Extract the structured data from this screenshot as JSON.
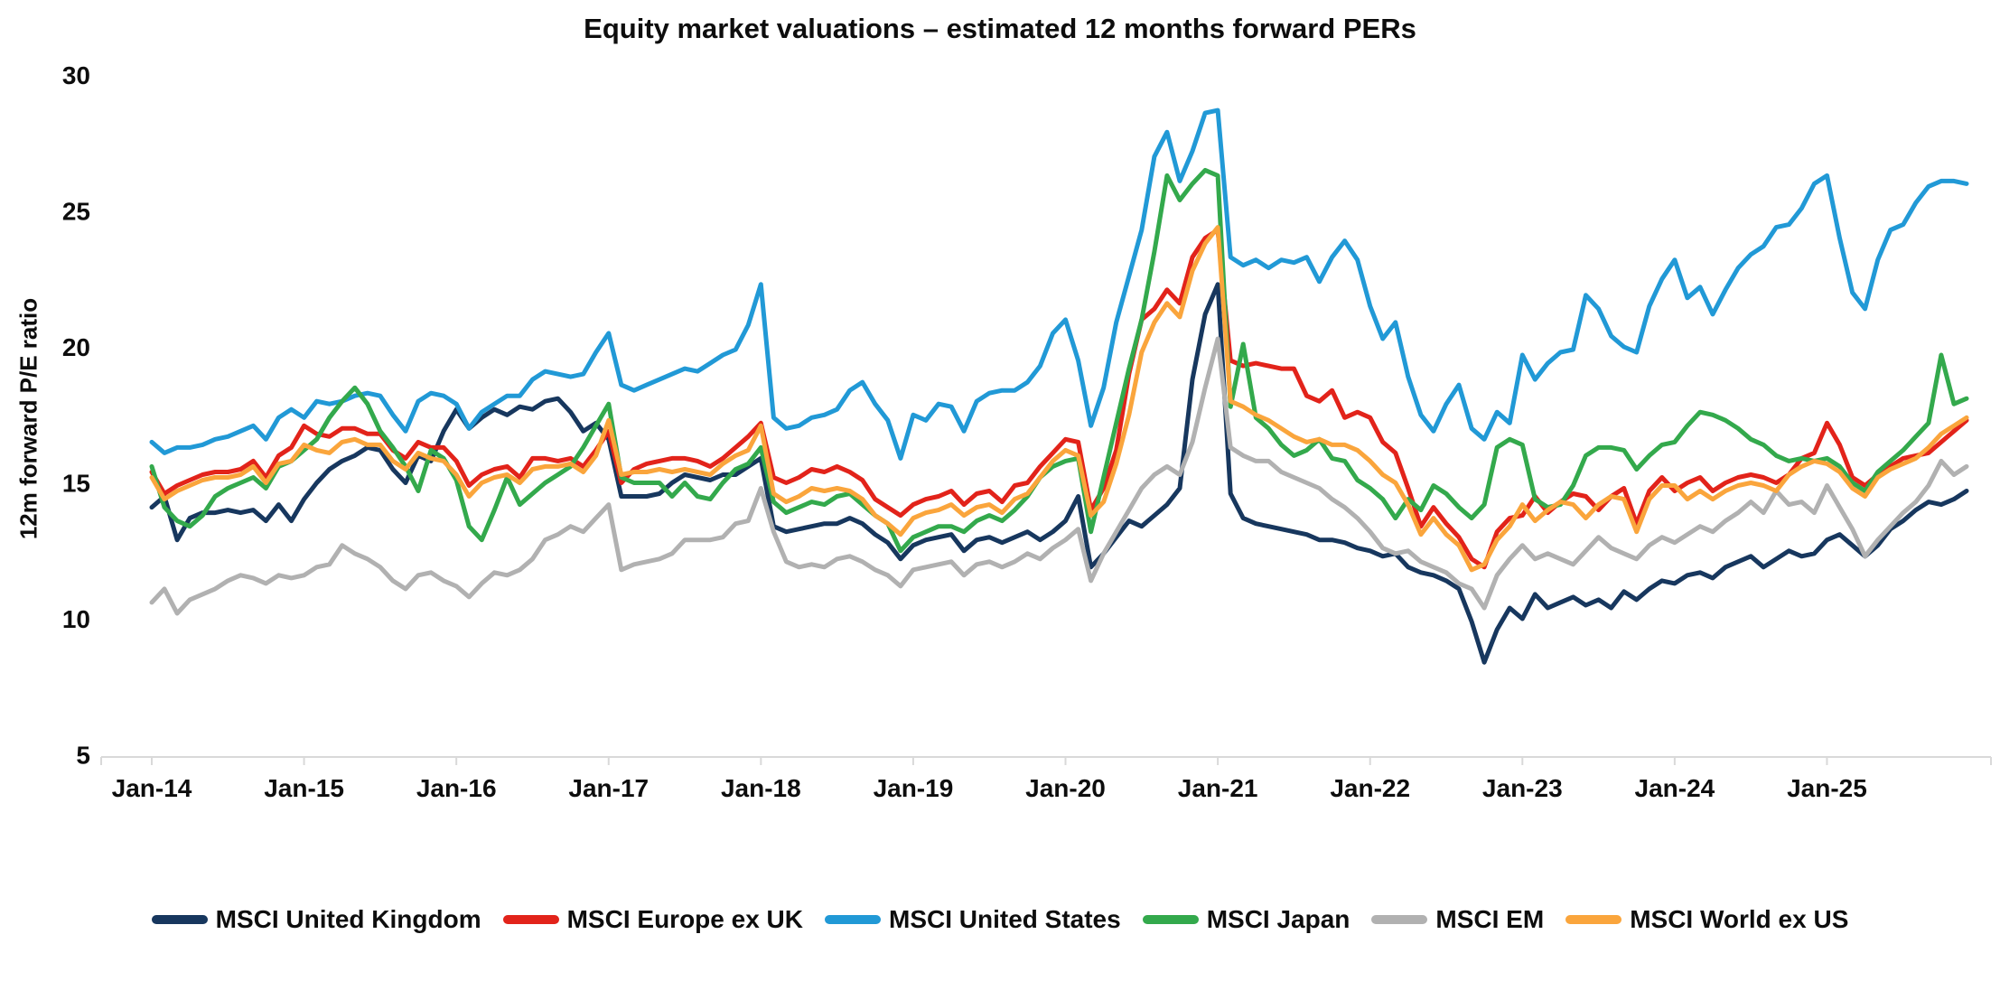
{
  "chart_data": {
    "type": "line",
    "title": "Equity market valuations – estimated 12 months forward PERs",
    "ylabel": "12m forward P/E ratio",
    "x_start": "Jan-2014",
    "x_end": "Dec-2025",
    "x_frequency": "monthly",
    "x_tick_labels": [
      "Jan-14",
      "Jan-15",
      "Jan-16",
      "Jan-17",
      "Jan-18",
      "Jan-19",
      "Jan-20",
      "Jan-21",
      "Jan-22",
      "Jan-23",
      "Jan-24",
      "Jan-25"
    ],
    "yticks": [
      5,
      10,
      15,
      20,
      25,
      30
    ],
    "ylim": [
      5,
      30
    ],
    "grid": false,
    "legend_position": "bottom",
    "background_color": "#FFFFFF",
    "axis_color": "#D9D9D9",
    "text_color": "#0D0D0D",
    "series": [
      {
        "name": "MSCI United Kingdom",
        "color": "#17375E",
        "values": [
          14.1,
          14.5,
          12.9,
          13.7,
          13.9,
          13.9,
          14.0,
          13.9,
          14.0,
          13.6,
          14.2,
          13.6,
          14.4,
          15.0,
          15.5,
          15.8,
          16.0,
          16.3,
          16.2,
          15.5,
          15.0,
          16.0,
          15.8,
          16.9,
          17.7,
          17.0,
          17.4,
          17.7,
          17.5,
          17.8,
          17.7,
          18.0,
          18.1,
          17.6,
          16.9,
          17.2,
          16.6,
          14.5,
          14.5,
          14.5,
          14.6,
          15.0,
          15.3,
          15.2,
          15.1,
          15.3,
          15.3,
          15.6,
          15.9,
          13.4,
          13.2,
          13.3,
          13.4,
          13.5,
          13.5,
          13.7,
          13.5,
          13.1,
          12.8,
          12.2,
          12.7,
          12.9,
          13.0,
          13.1,
          12.5,
          12.9,
          13.0,
          12.8,
          13.0,
          13.2,
          12.9,
          13.2,
          13.6,
          14.5,
          11.9,
          12.4,
          13.0,
          13.6,
          13.4,
          13.8,
          14.2,
          14.8,
          18.8,
          21.2,
          22.3,
          14.6,
          13.7,
          13.5,
          13.4,
          13.3,
          13.2,
          13.1,
          12.9,
          12.9,
          12.8,
          12.6,
          12.5,
          12.3,
          12.4,
          11.9,
          11.7,
          11.6,
          11.4,
          11.1,
          9.9,
          8.4,
          9.6,
          10.4,
          10.0,
          10.9,
          10.4,
          10.6,
          10.8,
          10.5,
          10.7,
          10.4,
          11.0,
          10.7,
          11.1,
          11.4,
          11.3,
          11.6,
          11.7,
          11.5,
          11.9,
          12.1,
          12.3,
          11.9,
          12.2,
          12.5,
          12.3,
          12.4,
          12.9,
          13.1,
          12.7,
          12.3,
          12.7,
          13.3,
          13.6,
          14.0,
          14.3,
          14.2,
          14.4,
          14.7
        ]
      },
      {
        "name": "MSCI Europe ex UK",
        "color": "#E2231A",
        "values": [
          15.4,
          14.6,
          14.9,
          15.1,
          15.3,
          15.4,
          15.4,
          15.5,
          15.8,
          15.2,
          16.0,
          16.3,
          17.1,
          16.8,
          16.7,
          17.0,
          17.0,
          16.8,
          16.8,
          16.2,
          15.9,
          16.5,
          16.3,
          16.3,
          15.8,
          14.9,
          15.3,
          15.5,
          15.6,
          15.2,
          15.9,
          15.9,
          15.8,
          15.9,
          15.6,
          16.2,
          16.9,
          15.0,
          15.5,
          15.7,
          15.8,
          15.9,
          15.9,
          15.8,
          15.6,
          15.9,
          16.3,
          16.7,
          17.2,
          15.2,
          15.0,
          15.2,
          15.5,
          15.4,
          15.6,
          15.4,
          15.1,
          14.4,
          14.1,
          13.8,
          14.2,
          14.4,
          14.5,
          14.7,
          14.2,
          14.6,
          14.7,
          14.3,
          14.9,
          15.0,
          15.6,
          16.1,
          16.6,
          16.5,
          14.0,
          14.8,
          16.2,
          19.0,
          21.0,
          21.4,
          22.1,
          21.6,
          23.3,
          24.0,
          24.3,
          19.5,
          19.3,
          19.4,
          19.3,
          19.2,
          19.2,
          18.2,
          18.0,
          18.4,
          17.4,
          17.6,
          17.4,
          16.5,
          16.1,
          14.8,
          13.4,
          14.1,
          13.5,
          13.0,
          12.2,
          11.9,
          13.2,
          13.7,
          13.8,
          14.5,
          13.9,
          14.3,
          14.6,
          14.5,
          14.0,
          14.5,
          14.8,
          13.5,
          14.7,
          15.2,
          14.7,
          15.0,
          15.2,
          14.7,
          15.0,
          15.2,
          15.3,
          15.2,
          15.0,
          15.3,
          15.9,
          16.1,
          17.2,
          16.4,
          15.2,
          14.9,
          15.3,
          15.6,
          15.9,
          16.0,
          16.1,
          16.5,
          16.9,
          17.3
        ]
      },
      {
        "name": "MSCI United States",
        "color": "#2199D6",
        "values": [
          16.5,
          16.1,
          16.3,
          16.3,
          16.4,
          16.6,
          16.7,
          16.9,
          17.1,
          16.6,
          17.4,
          17.7,
          17.4,
          18.0,
          17.9,
          18.0,
          18.2,
          18.3,
          18.2,
          17.5,
          16.9,
          18.0,
          18.3,
          18.2,
          17.9,
          17.0,
          17.6,
          17.9,
          18.2,
          18.2,
          18.8,
          19.1,
          19.0,
          18.9,
          19.0,
          19.8,
          20.5,
          18.6,
          18.4,
          18.6,
          18.8,
          19.0,
          19.2,
          19.1,
          19.4,
          19.7,
          19.9,
          20.8,
          22.3,
          17.4,
          17.0,
          17.1,
          17.4,
          17.5,
          17.7,
          18.4,
          18.7,
          17.9,
          17.3,
          15.9,
          17.5,
          17.3,
          17.9,
          17.8,
          16.9,
          18.0,
          18.3,
          18.4,
          18.4,
          18.7,
          19.3,
          20.5,
          21.0,
          19.5,
          17.1,
          18.5,
          20.9,
          22.6,
          24.3,
          27.0,
          27.9,
          26.1,
          27.2,
          28.6,
          28.7,
          23.3,
          23.0,
          23.2,
          22.9,
          23.2,
          23.1,
          23.3,
          22.4,
          23.3,
          23.9,
          23.2,
          21.5,
          20.3,
          20.9,
          18.9,
          17.5,
          16.9,
          17.9,
          18.6,
          17.0,
          16.6,
          17.6,
          17.2,
          19.7,
          18.8,
          19.4,
          19.8,
          19.9,
          21.9,
          21.4,
          20.4,
          20.0,
          19.8,
          21.5,
          22.5,
          23.2,
          21.8,
          22.2,
          21.2,
          22.1,
          22.9,
          23.4,
          23.7,
          24.4,
          24.5,
          25.1,
          26.0,
          26.3,
          24.0,
          22.0,
          21.4,
          23.2,
          24.3,
          24.5,
          25.3,
          25.9,
          26.1,
          26.1,
          26.0
        ]
      },
      {
        "name": "MSCI Japan",
        "color": "#33A94C",
        "values": [
          15.6,
          14.1,
          13.6,
          13.4,
          13.8,
          14.5,
          14.8,
          15.0,
          15.2,
          14.8,
          15.6,
          15.8,
          16.2,
          16.6,
          17.4,
          18.0,
          18.5,
          17.9,
          16.9,
          16.3,
          15.6,
          14.7,
          16.2,
          15.9,
          15.1,
          13.4,
          12.9,
          14.0,
          15.2,
          14.2,
          14.6,
          15.0,
          15.3,
          15.6,
          16.3,
          17.1,
          17.9,
          15.2,
          15.0,
          15.0,
          15.0,
          14.5,
          15.0,
          14.5,
          14.4,
          15.0,
          15.5,
          15.7,
          16.3,
          14.3,
          13.9,
          14.1,
          14.3,
          14.2,
          14.5,
          14.6,
          14.2,
          13.8,
          13.5,
          12.5,
          13.0,
          13.2,
          13.4,
          13.4,
          13.2,
          13.6,
          13.8,
          13.6,
          14.0,
          14.5,
          15.2,
          15.6,
          15.8,
          15.9,
          13.2,
          15.2,
          17.2,
          19.2,
          21.0,
          23.5,
          26.3,
          25.4,
          26.0,
          26.5,
          26.3,
          17.8,
          20.1,
          17.4,
          17.0,
          16.4,
          16.0,
          16.2,
          16.6,
          15.9,
          15.8,
          15.1,
          14.8,
          14.4,
          13.7,
          14.4,
          14.0,
          14.9,
          14.6,
          14.1,
          13.7,
          14.2,
          16.3,
          16.6,
          16.4,
          14.4,
          14.1,
          14.2,
          14.9,
          16.0,
          16.3,
          16.3,
          16.2,
          15.5,
          16.0,
          16.4,
          16.5,
          17.1,
          17.6,
          17.5,
          17.3,
          17.0,
          16.6,
          16.4,
          16.0,
          15.8,
          15.9,
          15.8,
          15.9,
          15.6,
          15.0,
          14.7,
          15.4,
          15.8,
          16.2,
          16.7,
          17.2,
          19.7,
          17.9,
          18.1
        ]
      },
      {
        "name": "MSCI EM",
        "color": "#B1B1B1",
        "values": [
          10.6,
          11.1,
          10.2,
          10.7,
          10.9,
          11.1,
          11.4,
          11.6,
          11.5,
          11.3,
          11.6,
          11.5,
          11.6,
          11.9,
          12.0,
          12.7,
          12.4,
          12.2,
          11.9,
          11.4,
          11.1,
          11.6,
          11.7,
          11.4,
          11.2,
          10.8,
          11.3,
          11.7,
          11.6,
          11.8,
          12.2,
          12.9,
          13.1,
          13.4,
          13.2,
          13.7,
          14.2,
          11.8,
          12.0,
          12.1,
          12.2,
          12.4,
          12.9,
          12.9,
          12.9,
          13.0,
          13.5,
          13.6,
          14.8,
          13.2,
          12.1,
          11.9,
          12.0,
          11.9,
          12.2,
          12.3,
          12.1,
          11.8,
          11.6,
          11.2,
          11.8,
          11.9,
          12.0,
          12.1,
          11.6,
          12.0,
          12.1,
          11.9,
          12.1,
          12.4,
          12.2,
          12.6,
          12.9,
          13.3,
          11.4,
          12.4,
          13.2,
          14.0,
          14.8,
          15.3,
          15.6,
          15.3,
          16.5,
          18.5,
          20.3,
          16.3,
          16.0,
          15.8,
          15.8,
          15.4,
          15.2,
          15.0,
          14.8,
          14.4,
          14.1,
          13.7,
          13.2,
          12.6,
          12.4,
          12.5,
          12.1,
          11.9,
          11.7,
          11.3,
          11.1,
          10.4,
          11.6,
          12.2,
          12.7,
          12.2,
          12.4,
          12.2,
          12.0,
          12.5,
          13.0,
          12.6,
          12.4,
          12.2,
          12.7,
          13.0,
          12.8,
          13.1,
          13.4,
          13.2,
          13.6,
          13.9,
          14.3,
          13.9,
          14.7,
          14.2,
          14.3,
          13.9,
          14.9,
          14.1,
          13.3,
          12.3,
          12.9,
          13.4,
          13.9,
          14.3,
          14.9,
          15.8,
          15.3,
          15.6
        ]
      },
      {
        "name": "MSCI World ex US",
        "color": "#FAA53C",
        "values": [
          15.2,
          14.4,
          14.7,
          14.9,
          15.1,
          15.2,
          15.2,
          15.3,
          15.6,
          15.0,
          15.7,
          15.8,
          16.4,
          16.2,
          16.1,
          16.5,
          16.6,
          16.4,
          16.4,
          15.8,
          15.5,
          16.1,
          15.9,
          15.8,
          15.3,
          14.5,
          15.0,
          15.2,
          15.3,
          15.0,
          15.5,
          15.6,
          15.6,
          15.7,
          15.4,
          16.0,
          17.3,
          15.3,
          15.4,
          15.4,
          15.5,
          15.4,
          15.5,
          15.4,
          15.3,
          15.7,
          16.0,
          16.2,
          17.1,
          14.6,
          14.3,
          14.5,
          14.8,
          14.7,
          14.8,
          14.7,
          14.4,
          13.8,
          13.5,
          13.1,
          13.7,
          13.9,
          14.0,
          14.2,
          13.8,
          14.1,
          14.2,
          13.9,
          14.4,
          14.6,
          15.2,
          15.8,
          16.2,
          16.0,
          13.8,
          14.3,
          15.7,
          17.5,
          19.8,
          20.9,
          21.6,
          21.1,
          22.8,
          23.8,
          24.4,
          18.0,
          17.8,
          17.5,
          17.3,
          17.0,
          16.7,
          16.5,
          16.6,
          16.4,
          16.4,
          16.2,
          15.8,
          15.3,
          15.0,
          14.2,
          13.1,
          13.7,
          13.1,
          12.7,
          11.8,
          12.0,
          12.9,
          13.4,
          14.2,
          13.6,
          14.0,
          14.3,
          14.2,
          13.7,
          14.2,
          14.5,
          14.4,
          13.2,
          14.4,
          14.9,
          14.9,
          14.4,
          14.7,
          14.4,
          14.7,
          14.9,
          15.0,
          14.9,
          14.7,
          15.3,
          15.6,
          15.8,
          15.7,
          15.4,
          14.8,
          14.5,
          15.2,
          15.5,
          15.7,
          15.9,
          16.3,
          16.8,
          17.1,
          17.4
        ]
      }
    ]
  }
}
